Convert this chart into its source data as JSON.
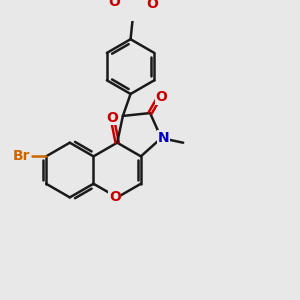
{
  "bg_color": "#e8e8e8",
  "bond_color": "#1a1a1a",
  "oxygen_color": "#cc0000",
  "nitrogen_color": "#0000cc",
  "bromine_color": "#cc6600",
  "lw": 1.8,
  "dbo": 0.07,
  "BL": 0.58,
  "xlim": [
    -3.5,
    2.8
  ],
  "ylim": [
    -2.5,
    3.2
  ]
}
